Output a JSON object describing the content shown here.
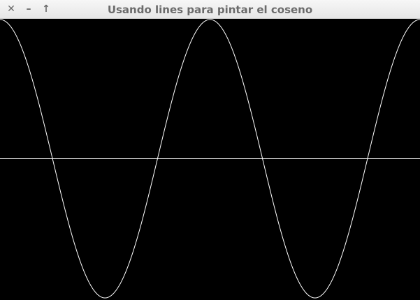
{
  "window": {
    "title": "Usando lines para pintar el coseno",
    "close_glyph": "✕",
    "minimize_glyph": "–",
    "maximize_glyph": "↑"
  },
  "canvas": {
    "background_color": "#000000",
    "stroke_color": "#ffffff"
  },
  "chart_data": {
    "type": "line",
    "title": "",
    "xlabel": "",
    "ylabel": "",
    "function": "cos",
    "x_range": [
      0,
      12.566
    ],
    "ylim": [
      -1,
      1
    ],
    "axis_line": "y = 0",
    "grid": false,
    "legend": "none",
    "series": [
      {
        "x": [
          0,
          0.5,
          1.0,
          1.5708,
          2.0,
          2.5,
          3.1416,
          3.5,
          4.0,
          4.7124,
          5.0,
          5.5,
          6.2832,
          7.0,
          7.854,
          8.5,
          9.4248,
          10.0,
          11.0,
          12.566
        ],
        "y": [
          1,
          0.878,
          0.54,
          0,
          -0.416,
          -0.801,
          -1,
          -0.936,
          -0.654,
          0,
          0.284,
          0.709,
          1,
          0.754,
          0,
          -0.602,
          -1,
          -0.839,
          0.004,
          1
        ]
      }
    ]
  }
}
